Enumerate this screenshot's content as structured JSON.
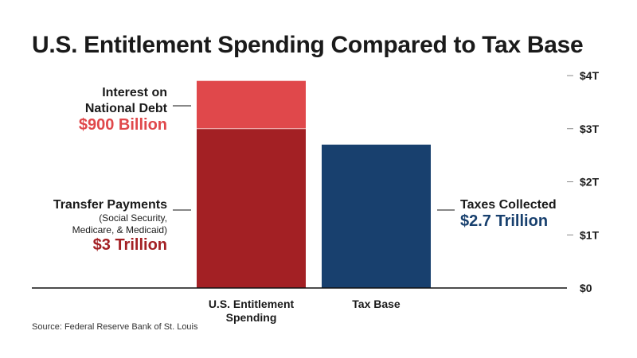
{
  "title": "U.S. Entitlement Spending Compared to Tax Base",
  "source": "Source: Federal Reserve Bank of St. Louis",
  "colors": {
    "interest": "#e0484b",
    "transfer": "#a32024",
    "tax": "#18406e",
    "axis": "#111111",
    "tick": "#888888"
  },
  "annotations": {
    "interest": {
      "label_lines": [
        "Interest on",
        "National Debt"
      ],
      "value": "$900 Billion"
    },
    "transfer": {
      "label": "Transfer Payments",
      "sub_lines": [
        "(Social Security,",
        "Medicare, & Medicaid)"
      ],
      "value": "$3 Trillion"
    },
    "taxes": {
      "label": "Taxes Collected",
      "value": "$2.7 Trillion"
    }
  },
  "chart_data": {
    "type": "bar",
    "stacked": true,
    "title": "U.S. Entitlement Spending Compared to Tax Base",
    "categories": [
      "U.S. Entitlement Spending",
      "Tax Base"
    ],
    "category_label_lines": [
      [
        "U.S. Entitlement",
        "Spending"
      ],
      [
        "Tax Base"
      ]
    ],
    "series": [
      {
        "name": "Transfer Payments",
        "values": [
          3.0,
          0
        ]
      },
      {
        "name": "Interest on National Debt",
        "values": [
          0.9,
          0
        ]
      },
      {
        "name": "Taxes Collected",
        "values": [
          0,
          2.7
        ]
      }
    ],
    "yunit": "trillion USD",
    "ylim": [
      0,
      4
    ],
    "yticks": [
      0,
      1,
      2,
      3,
      4
    ],
    "ytick_labels": [
      "$0",
      "$1T",
      "$2T",
      "$3T",
      "$4T"
    ],
    "axis_position": "right",
    "grid": false,
    "legend": "none"
  }
}
